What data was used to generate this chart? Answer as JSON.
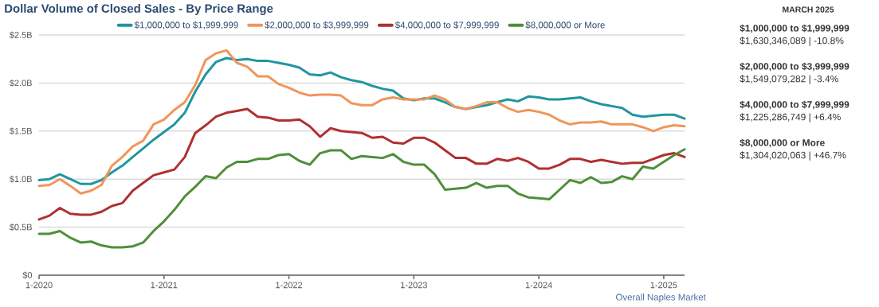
{
  "chart_data": [
    {
      "type": "line",
      "title": "Dollar Volume of Closed Sales - By Price Range",
      "x": [
        "2020-01",
        "2020-02",
        "2020-03",
        "2020-04",
        "2020-05",
        "2020-06",
        "2020-07",
        "2020-08",
        "2020-09",
        "2020-10",
        "2020-11",
        "2020-12",
        "2021-01",
        "2021-02",
        "2021-03",
        "2021-04",
        "2021-05",
        "2021-06",
        "2021-07",
        "2021-08",
        "2021-09",
        "2021-10",
        "2021-11",
        "2021-12",
        "2022-01",
        "2022-02",
        "2022-03",
        "2022-04",
        "2022-05",
        "2022-06",
        "2022-07",
        "2022-08",
        "2022-09",
        "2022-10",
        "2022-11",
        "2022-12",
        "2023-01",
        "2023-02",
        "2023-03",
        "2023-04",
        "2023-05",
        "2023-06",
        "2023-07",
        "2023-08",
        "2023-09",
        "2023-10",
        "2023-11",
        "2023-12",
        "2024-01",
        "2024-02",
        "2024-03",
        "2024-04",
        "2024-05",
        "2024-06",
        "2024-07",
        "2024-08",
        "2024-09",
        "2024-10",
        "2024-11",
        "2024-12",
        "2025-01",
        "2025-02",
        "2025-03"
      ],
      "xlim": [
        "2020-01",
        "2025-03"
      ],
      "xticks": [
        {
          "value": "2020-01",
          "label": "1-2020"
        },
        {
          "value": "2021-01",
          "label": "1-2021"
        },
        {
          "value": "2022-01",
          "label": "1-2022"
        },
        {
          "value": "2023-01",
          "label": "1-2023"
        },
        {
          "value": "2024-01",
          "label": "1-2024"
        },
        {
          "value": "2025-01",
          "label": "1-2025"
        }
      ],
      "ylim": [
        0,
        2.5
      ],
      "yticks": [
        {
          "value": 0,
          "label": "$0"
        },
        {
          "value": 0.5,
          "label": "$0.5B"
        },
        {
          "value": 1.0,
          "label": "$1.0B"
        },
        {
          "value": 1.5,
          "label": "$1.5B"
        },
        {
          "value": 2.0,
          "label": "$2.0B"
        },
        {
          "value": 2.5,
          "label": "$2.5B"
        }
      ],
      "grid": "y",
      "legend": "top",
      "series": [
        {
          "name": "$1,000,000 to $1,999,999",
          "color": "#2196a0",
          "values": [
            0.99,
            1.0,
            1.05,
            1.0,
            0.95,
            0.95,
            0.99,
            1.07,
            1.14,
            1.23,
            1.32,
            1.41,
            1.49,
            1.57,
            1.69,
            1.91,
            2.09,
            2.22,
            2.26,
            2.24,
            2.25,
            2.23,
            2.23,
            2.21,
            2.19,
            2.16,
            2.09,
            2.08,
            2.11,
            2.06,
            2.03,
            2.01,
            1.97,
            1.94,
            1.92,
            1.84,
            1.82,
            1.84,
            1.84,
            1.8,
            1.75,
            1.73,
            1.75,
            1.77,
            1.8,
            1.83,
            1.81,
            1.86,
            1.85,
            1.83,
            1.83,
            1.84,
            1.85,
            1.81,
            1.78,
            1.76,
            1.74,
            1.67,
            1.65,
            1.66,
            1.67,
            1.67,
            1.63
          ]
        },
        {
          "name": "$2,000,000 to $3,999,999",
          "color": "#f0965a",
          "values": [
            0.93,
            0.94,
            1.0,
            0.93,
            0.85,
            0.88,
            0.94,
            1.14,
            1.23,
            1.34,
            1.4,
            1.57,
            1.62,
            1.72,
            1.8,
            1.98,
            2.24,
            2.31,
            2.34,
            2.21,
            2.17,
            2.07,
            2.07,
            1.99,
            1.95,
            1.9,
            1.87,
            1.88,
            1.88,
            1.87,
            1.79,
            1.77,
            1.77,
            1.83,
            1.85,
            1.83,
            1.83,
            1.83,
            1.87,
            1.83,
            1.75,
            1.73,
            1.76,
            1.8,
            1.8,
            1.74,
            1.7,
            1.72,
            1.7,
            1.67,
            1.61,
            1.57,
            1.59,
            1.59,
            1.6,
            1.57,
            1.57,
            1.57,
            1.54,
            1.5,
            1.54,
            1.56,
            1.55
          ]
        },
        {
          "name": "$4,000,000 to $7,999,999",
          "color": "#b03030",
          "values": [
            0.58,
            0.62,
            0.7,
            0.64,
            0.63,
            0.63,
            0.66,
            0.72,
            0.75,
            0.88,
            0.96,
            1.04,
            1.07,
            1.1,
            1.23,
            1.48,
            1.56,
            1.65,
            1.69,
            1.71,
            1.73,
            1.65,
            1.64,
            1.61,
            1.61,
            1.62,
            1.55,
            1.44,
            1.53,
            1.5,
            1.49,
            1.48,
            1.43,
            1.44,
            1.38,
            1.37,
            1.43,
            1.43,
            1.38,
            1.3,
            1.22,
            1.22,
            1.16,
            1.16,
            1.21,
            1.19,
            1.22,
            1.18,
            1.11,
            1.11,
            1.15,
            1.21,
            1.21,
            1.18,
            1.2,
            1.18,
            1.16,
            1.17,
            1.17,
            1.21,
            1.25,
            1.27,
            1.23
          ]
        },
        {
          "name": "$8,000,000 or More",
          "color": "#4f8f3a",
          "values": [
            0.43,
            0.43,
            0.46,
            0.39,
            0.34,
            0.35,
            0.31,
            0.29,
            0.29,
            0.3,
            0.34,
            0.46,
            0.56,
            0.68,
            0.82,
            0.92,
            1.03,
            1.01,
            1.12,
            1.18,
            1.18,
            1.21,
            1.21,
            1.25,
            1.26,
            1.19,
            1.15,
            1.27,
            1.3,
            1.3,
            1.21,
            1.24,
            1.23,
            1.22,
            1.26,
            1.18,
            1.15,
            1.15,
            1.05,
            0.89,
            0.9,
            0.91,
            0.96,
            0.91,
            0.93,
            0.93,
            0.85,
            0.81,
            0.8,
            0.79,
            0.89,
            0.99,
            0.96,
            1.02,
            0.96,
            0.97,
            1.03,
            1.0,
            1.13,
            1.11,
            1.18,
            1.25,
            1.31
          ]
        }
      ],
      "annotations": [
        "Overall Naples Market"
      ]
    },
    {
      "type": "other",
      "title": "MARCH 2025",
      "categories": [
        "$1,000,000 to $1,999,999",
        "$2,000,000 to $3,999,999",
        "$4,000,000 to $7,999,999",
        "$8,000,000 or More"
      ],
      "value_labels": [
        "$1,630,346,089 | -10.8%",
        "$1,549,079,282 | -3.4%",
        "$1,225,286,749 | +6.4%",
        "$1,304,020,063 | +46.7%"
      ]
    }
  ]
}
